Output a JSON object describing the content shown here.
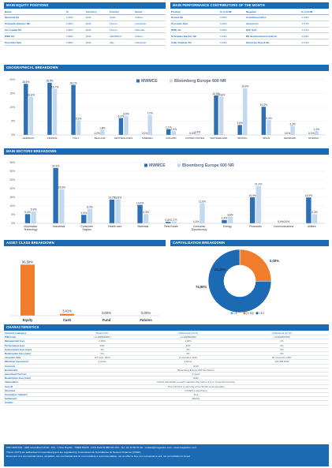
{
  "equity": {
    "title": "MAIN EQUITY POSITIONS",
    "headers": [
      "Name",
      "%",
      "Currency",
      "Country",
      "Sector"
    ],
    "rows": [
      {
        "name": "Iberdrola SA",
        "pct": "3,15%",
        "cur": "EUR",
        "country": "Spain",
        "sector": "Utilities"
      },
      {
        "name": "Schneider Electric SE",
        "pct": "2,95%",
        "cur": "EUR",
        "country": "France",
        "sector": "Industrials"
      },
      {
        "name": "Air Liquide SA",
        "pct": "2,89%",
        "cur": "EUR",
        "country": "France",
        "sector": "Materials"
      },
      {
        "name": "RWE AG",
        "pct": "2,89%",
        "cur": "EUR",
        "country": "GERMANY",
        "sector": "Utilities"
      },
      {
        "name": "Prysmian SpA",
        "pct": "2,88%",
        "cur": "EUR",
        "country": "Italy",
        "sector": "Industrials"
      }
    ]
  },
  "perf": {
    "title": "MAIN PERFORMANCE CONTRIBUTORS OF THE MONTH",
    "headers": [
      "Positive",
      "% of AUM",
      "Negative",
      "% of AUM"
    ],
    "rows": [
      {
        "pos": "Orsted SA",
        "pp": "0,39%",
        "neg": "AstraZeneca PLC",
        "np": "-0,18%"
      },
      {
        "pos": "Prysmian SpA",
        "pp": "0,29%",
        "neg": "Alstom Inc",
        "np": "-0,17%"
      },
      {
        "pos": "RWE AG",
        "pp": "0,26%",
        "neg": "SOL SpA",
        "np": "-0,14%"
      },
      {
        "pos": "Schneider Electric SE",
        "pp": "0,23%",
        "neg": "BE Semiconductor Industr",
        "np": "-0,13%"
      },
      {
        "pos": "Iodie Vetamax SA",
        "pp": "0,19%",
        "neg": "Hannover Rueck SE",
        "np": "-0,12%"
      }
    ]
  },
  "geo": {
    "title": "GEOGRAPHICAL BREAKDOWN",
    "legend": [
      "MWMCE",
      "Bloomberg Europe 600 NR"
    ],
    "ticks": [
      "0%",
      "5%",
      "10%",
      "15%",
      "20%"
    ]
  },
  "sectors": {
    "title": "MAIN SECTORS BREAKDOWN",
    "legend": [
      "MWMCE",
      "Bloomberg Europe 600 NR"
    ],
    "ticks": [
      "0%",
      "5%",
      "10%",
      "15%",
      "20%",
      "25%",
      "30%",
      "35%"
    ]
  },
  "asset": {
    "title": "ASSET CLASS BREAKDOWN"
  },
  "cap": {
    "title": "CAPITALISATION BREAKDOWN",
    "legend": [
      "<1",
      "[1;10]",
      ">10"
    ]
  },
  "chart_data": [
    {
      "type": "bar",
      "title": "GEOGRAPHICAL BREAKDOWN",
      "categories": [
        "GERMANY",
        "FRANCE",
        "ITALY",
        "BELGIUM",
        "NETHERLANDS",
        "SWEDEN",
        "FINLAND",
        "UNITED STATES",
        "SWITZERLAND",
        "BRITAIN",
        "SPAIN",
        "DENMARK",
        "NORWAY"
      ],
      "series": [
        {
          "name": "MWMCE",
          "values": [
            18.5,
            18.9,
            18.1,
            0.0,
            6.1,
            0.0,
            2.1,
            0.0,
            14.3,
            3.6,
            10.2,
            0.0,
            0.0
          ]
        },
        {
          "name": "Bloomberg Europe 600 NR",
          "values": [
            13.8,
            16.7,
            5.3,
            1.8,
            6.9,
            7.2,
            1.4,
            0.4,
            13.8,
            16.9,
            5.4,
            3.3,
            1.4
          ]
        }
      ],
      "ylim": [
        0,
        20
      ],
      "colors": [
        "#2e6fb5",
        "#c4d8ef"
      ]
    },
    {
      "type": "bar",
      "title": "MAIN SECTORS BREAKDOWN",
      "categories": [
        "Information Technology",
        "Industrials",
        "Consumer Staples",
        "Health care",
        "Materials",
        "Real Estate",
        "Consumer Discretionary",
        "Energy",
        "Financials",
        "Communications",
        "Utilities"
      ],
      "series": [
        {
          "name": "MWMCE",
          "values": [
            5.3,
            31.9,
            4.9,
            13.7,
            10.6,
            0.8,
            0.0,
            1.9,
            15.0,
            0.0,
            14.9
          ]
        },
        {
          "name": "Bloomberg Europe 600 NR",
          "values": [
            6.9,
            19.6,
            8.4,
            13.8,
            5.3,
            1.1,
            11.6,
            3.8,
            21.4,
            0.0,
            5.3
          ]
        }
      ],
      "ylim": [
        0,
        35
      ],
      "colors": [
        "#2e6fb5",
        "#c4d8ef"
      ]
    },
    {
      "type": "bar",
      "title": "ASSET CLASS BREAKDOWN",
      "categories": [
        "Equity",
        "Cash",
        "Fund",
        "Futures"
      ],
      "values": [
        96.59,
        3.41,
        0.0,
        0.0
      ],
      "labels": [
        "96,59%",
        "3,41%",
        "0,00%",
        "0,00%"
      ],
      "colors": [
        "#ef7d2b"
      ]
    },
    {
      "type": "pie",
      "title": "CAPITALISATION BREAKDOWN",
      "categories": [
        "<1",
        "[1;10]",
        ">10"
      ],
      "values": [
        0.0,
        25.1,
        74.9
      ],
      "labels": [
        "0,00%",
        "25,10%",
        "74,90%"
      ],
      "colors": [
        "#6aaee0",
        "#ef7d2b",
        "#1b6ab3"
      ]
    }
  ],
  "characteristics": {
    "title": "CHARACTERISTICS",
    "rows": [
      {
        "label": "Investor's category",
        "cols": [
          "Retail (C/P)",
          "Institutional (C/I-P)",
          "Institutional (C/I-P)"
        ]
      },
      {
        "label": "ISIN Code",
        "cols": [
          "LU1990593901",
          "LU1990593950",
          "LU1990593966"
        ]
      },
      {
        "label": "Management fees",
        "cols": [
          "2,00%",
          "1,00%",
          "1%"
        ]
      },
      {
        "label": "Performance fees",
        "cols": [
          "20%",
          "20%",
          "0%"
        ]
      },
      {
        "label": "Subscription fees (max)",
        "cols": [
          "2%",
          "0%",
          "0%"
        ]
      },
      {
        "label": "Redemption fees (max)",
        "cols": [
          "0%",
          "0%",
          "0%"
        ]
      },
      {
        "label": "Inception date",
        "cols": [
          "3rd Sept. 2019",
          "2 novembre 2021",
          "30 novembre 2021"
        ]
      },
      {
        "label": "Minimum investment",
        "cols": [
          "1 share",
          "1 share",
          "125 000 EUR"
        ]
      },
      {
        "label": "Currency",
        "cols": [
          "EUR"
        ]
      },
      {
        "label": "Benchmark",
        "cols": [
          "Bloomberg Europe 600 Net Return"
        ]
      },
      {
        "label": "Investment horizon",
        "cols": [
          "5 years"
        ]
      },
      {
        "label": "Redemption fees (max)",
        "cols": [
          "Daily"
        ]
      },
      {
        "label": "Valorisation",
        "cols": [
          "Orders admissible on each valuation day before 3 p.m. (Luxembourg time)"
        ]
      },
      {
        "label": "Cut-off",
        "cols": [
          "This UCITS is a sub-fund of the SICAV luxembourgish"
        ]
      },
      {
        "label": "Structure",
        "cols": [
          "CACEIS Luxembourg"
        ]
      },
      {
        "label": "Custodian / Valuator",
        "cols": [
          "D+2"
        ]
      },
      {
        "label": "Settlement",
        "cols": [
          "Mazars"
        ]
      },
      {
        "label": "Auditor",
        "cols": [
          ""
        ]
      }
    ]
  },
  "footer": {
    "line1": "MW GESTION - AMF accredited GP 92 - 014 - 7 Rue Royale - 75008 PARIS - RCS Paris B 388 491 321 - Tel : 01 42 86 54 40 - contact@magestion.com - www.magestion.com",
    "line2": "These UCITS are authorised in Luxembourg and are regulated by Commission de Surveillance du Secteur Financier (CSSF)",
    "line3": "Document of a commercial nature, simplified, non-contractual and do not constitute a recommendation, nor an offer to buy, nor a proposal to sell, nor an invitation to invest"
  }
}
